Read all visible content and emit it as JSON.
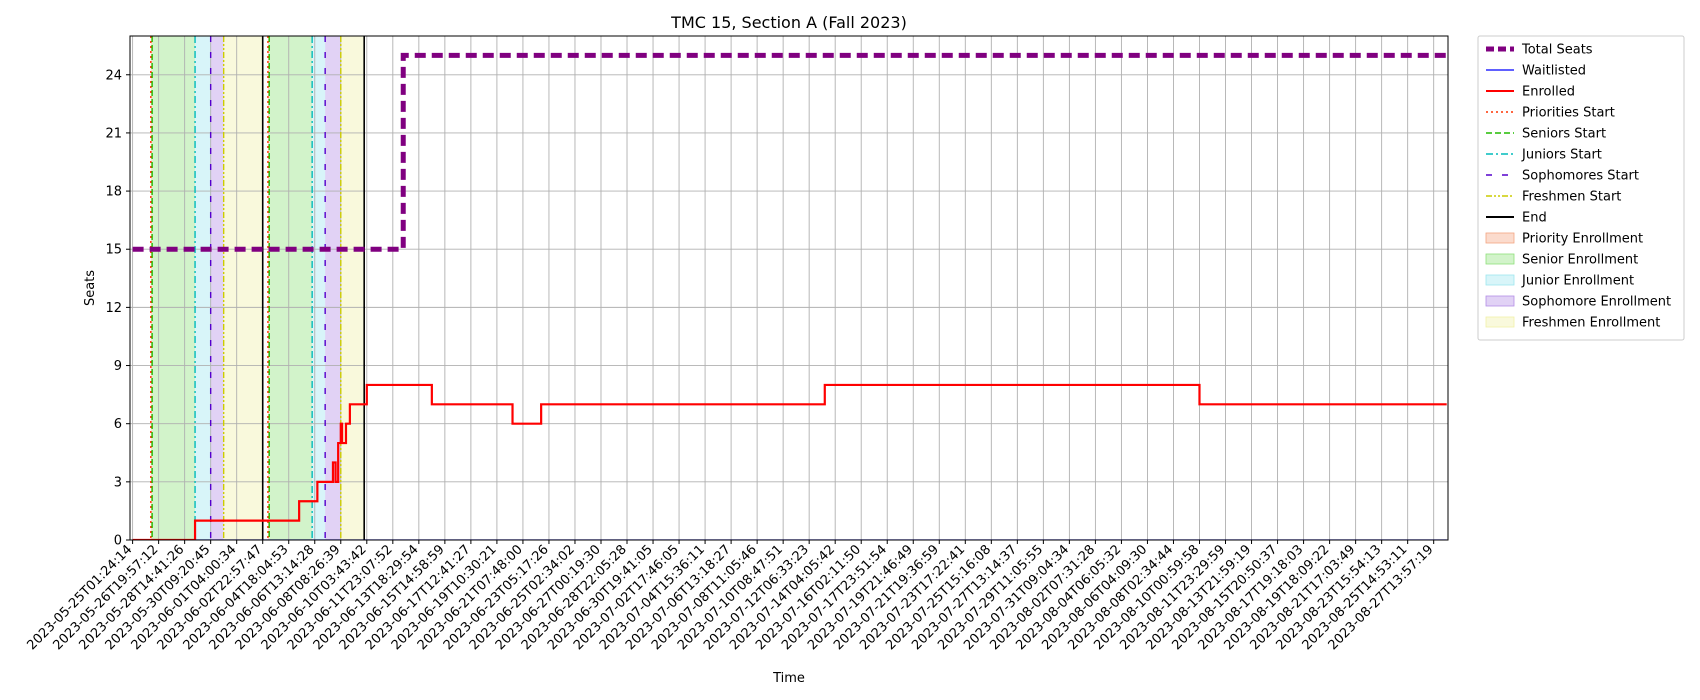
{
  "chart_data": {
    "type": "line",
    "title": "TMC 15, Section A (Fall 2023)",
    "xlabel": "Time",
    "ylabel": "Seats",
    "ylim": [
      0,
      26
    ],
    "yticks": [
      0,
      3,
      6,
      9,
      12,
      15,
      18,
      21,
      24
    ],
    "grid": true,
    "legend_position": "outside-right-top",
    "x_tick_labels": [
      "2023-05-25T01:24:14",
      "2023-05-26T19:57:12",
      "2023-05-28T14:41:26",
      "2023-05-30T09:20:45",
      "2023-06-01T04:00:34",
      "2023-06-02T22:57:47",
      "2023-06-04T18:04:53",
      "2023-06-06T13:14:28",
      "2023-06-08T08:26:39",
      "2023-06-10T03:43:42",
      "2023-06-11T23:07:52",
      "2023-06-13T18:29:54",
      "2023-06-15T14:58:59",
      "2023-06-17T12:41:27",
      "2023-06-19T10:30:21",
      "2023-06-21T07:48:00",
      "2023-06-23T05:17:26",
      "2023-06-25T02:34:02",
      "2023-06-27T00:19:30",
      "2023-06-28T22:05:28",
      "2023-06-30T19:41:05",
      "2023-07-02T17:46:05",
      "2023-07-04T15:36:11",
      "2023-07-06T13:18:27",
      "2023-07-08T11:05:46",
      "2023-07-10T08:47:51",
      "2023-07-12T06:33:23",
      "2023-07-14T04:05:42",
      "2023-07-16T02:11:50",
      "2023-07-17T23:51:54",
      "2023-07-19T21:46:49",
      "2023-07-21T19:36:59",
      "2023-07-23T17:22:41",
      "2023-07-25T15:16:08",
      "2023-07-27T13:14:37",
      "2023-07-29T11:05:55",
      "2023-07-31T09:04:34",
      "2023-08-02T07:31:28",
      "2023-08-04T06:05:32",
      "2023-08-06T04:09:30",
      "2023-08-08T02:34:44",
      "2023-08-10T00:59:58",
      "2023-08-11T23:29:59",
      "2023-08-13T21:59:19",
      "2023-08-15T20:50:37",
      "2023-08-17T19:18:03",
      "2023-08-19T18:09:22",
      "2023-08-21T17:03:49",
      "2023-08-23T15:54:13",
      "2023-08-25T14:53:11",
      "2023-08-27T13:57:19"
    ],
    "series": [
      {
        "name": "Total Seats",
        "color": "#800080",
        "style": "dashed-thick",
        "steps": [
          [
            0,
            15
          ],
          [
            10.4,
            15
          ],
          [
            10.4,
            25
          ],
          [
            50.5,
            25
          ]
        ]
      },
      {
        "name": "Waitlisted",
        "color": "#0000ff",
        "style": "solid-thin",
        "steps": [
          [
            0,
            0
          ],
          [
            50.5,
            0
          ]
        ]
      },
      {
        "name": "Enrolled",
        "color": "#ff0000",
        "style": "solid",
        "steps": [
          [
            0,
            0
          ],
          [
            2.4,
            0
          ],
          [
            2.4,
            1
          ],
          [
            6.4,
            1
          ],
          [
            6.4,
            2
          ],
          [
            7.1,
            2
          ],
          [
            7.1,
            3
          ],
          [
            7.7,
            3
          ],
          [
            7.7,
            4
          ],
          [
            7.8,
            4
          ],
          [
            7.8,
            3
          ],
          [
            7.9,
            3
          ],
          [
            7.9,
            5
          ],
          [
            8.0,
            5
          ],
          [
            8.0,
            6
          ],
          [
            8.05,
            6
          ],
          [
            8.05,
            5
          ],
          [
            8.2,
            5
          ],
          [
            8.2,
            6
          ],
          [
            8.35,
            6
          ],
          [
            8.35,
            7
          ],
          [
            9.0,
            7
          ],
          [
            9.0,
            8
          ],
          [
            11.5,
            8
          ],
          [
            11.5,
            7
          ],
          [
            14.6,
            7
          ],
          [
            14.6,
            6
          ],
          [
            15.7,
            6
          ],
          [
            15.7,
            7
          ],
          [
            26.6,
            7
          ],
          [
            26.6,
            8
          ],
          [
            41.0,
            8
          ],
          [
            41.0,
            7
          ],
          [
            50.5,
            7
          ]
        ]
      }
    ],
    "phase_lines": [
      {
        "name": "Priorities Start",
        "color": "#ff3300",
        "style": "dotted",
        "x": [
          0.7,
          5.2
        ]
      },
      {
        "name": "Seniors Start",
        "color": "#22bb00",
        "style": "dashed",
        "x": [
          0.75,
          5.25
        ]
      },
      {
        "name": "Juniors Start",
        "color": "#00bbbb",
        "style": "dashdot",
        "x": [
          2.4,
          6.9
        ]
      },
      {
        "name": "Sophomores Start",
        "color": "#5500cc",
        "style": "loosedash",
        "x": [
          3.0,
          7.4
        ]
      },
      {
        "name": "Freshmen Start",
        "color": "#cccc00",
        "style": "dashdotdot",
        "x": [
          3.5,
          8.0
        ]
      },
      {
        "name": "End",
        "color": "#000000",
        "style": "solid",
        "x": [
          5.0,
          8.9
        ]
      }
    ],
    "phase_spans": [
      {
        "name": "Priority Enrollment",
        "color": "#f4a582",
        "spans": [
          [
            0.7,
            0.75
          ],
          [
            5.2,
            5.25
          ]
        ]
      },
      {
        "name": "Senior Enrollment",
        "color": "#8fe07a",
        "spans": [
          [
            0.75,
            2.4
          ],
          [
            5.25,
            6.9
          ]
        ]
      },
      {
        "name": "Junior Enrollment",
        "color": "#9ee6ef",
        "spans": [
          [
            2.4,
            3.0
          ],
          [
            6.9,
            7.4
          ]
        ]
      },
      {
        "name": "Sophomore Enrollment",
        "color": "#b48ee6",
        "spans": [
          [
            3.0,
            3.5
          ],
          [
            7.4,
            8.0
          ]
        ]
      },
      {
        "name": "Freshmen Enrollment",
        "color": "#f1f0a8",
        "spans": [
          [
            3.5,
            5.0
          ],
          [
            8.0,
            8.9
          ]
        ]
      }
    ]
  }
}
